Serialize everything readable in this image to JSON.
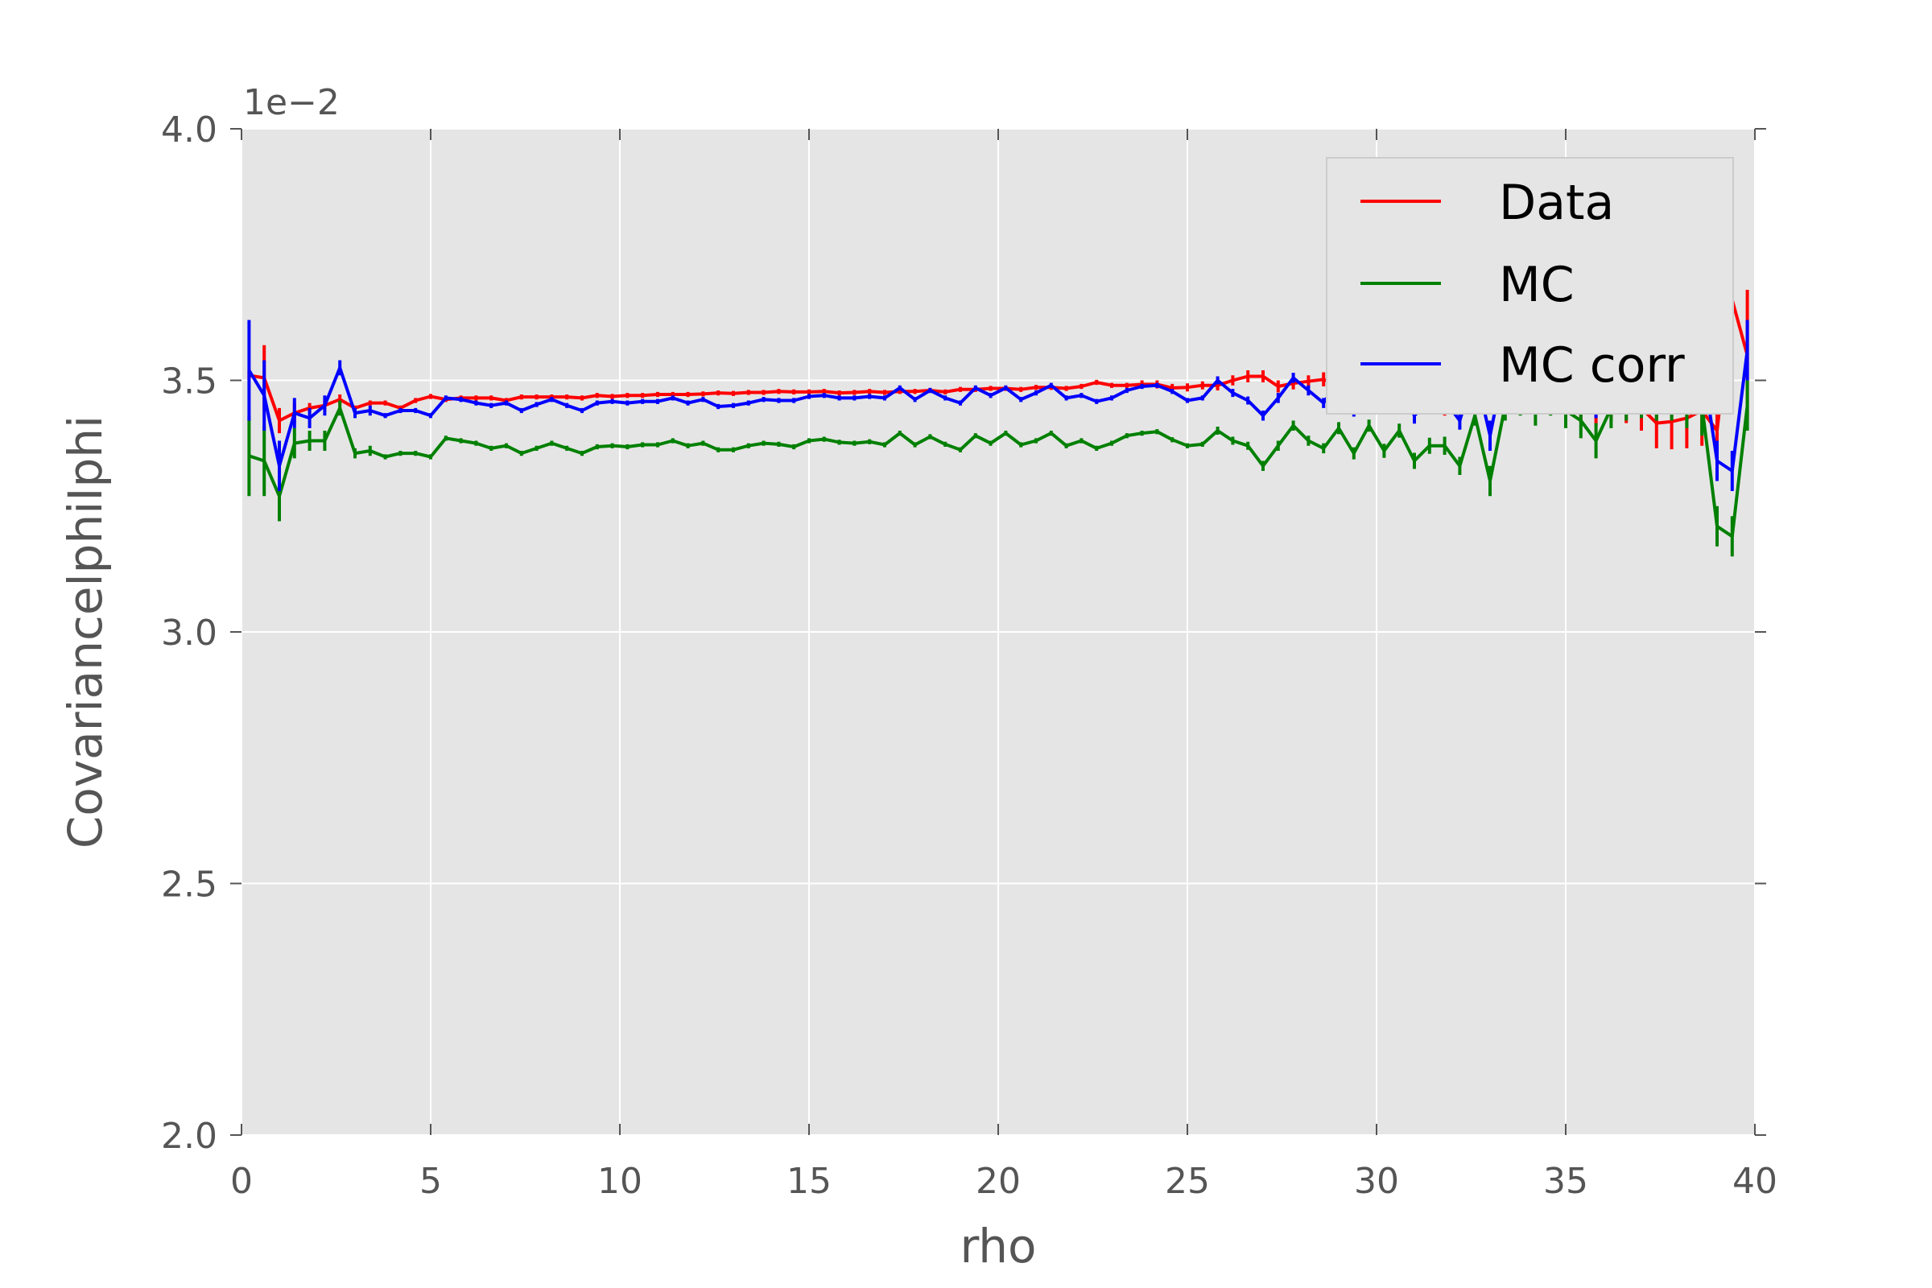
{
  "chart_data": {
    "type": "line",
    "title": "",
    "xlabel": "rho",
    "ylabel": "CovariancelphiIphi",
    "xlim": [
      0,
      40
    ],
    "ylim": [
      2.0,
      4.0
    ],
    "y_scale_label": "1e−2",
    "x_ticks": [
      0,
      5,
      10,
      15,
      20,
      25,
      30,
      35,
      40
    ],
    "x_tick_labels": [
      "0",
      "5",
      "10",
      "15",
      "20",
      "25",
      "30",
      "35",
      "40"
    ],
    "y_ticks": [
      2.0,
      2.5,
      3.0,
      3.5,
      4.0
    ],
    "y_tick_labels": [
      "2.0",
      "2.5",
      "3.0",
      "3.5",
      "4.0"
    ],
    "grid": true,
    "legend_position": "top-right",
    "x": [
      0.2,
      0.6,
      1.0,
      1.4,
      1.8,
      2.2,
      2.6,
      3.0,
      3.4,
      3.8,
      4.2,
      4.6,
      5.0,
      5.4,
      5.8,
      6.2,
      6.6,
      7.0,
      7.4,
      7.8,
      8.2,
      8.6,
      9.0,
      9.4,
      9.8,
      10.2,
      10.6,
      11.0,
      11.4,
      11.8,
      12.2,
      12.6,
      13.0,
      13.4,
      13.8,
      14.2,
      14.6,
      15.0,
      15.4,
      15.8,
      16.2,
      16.6,
      17.0,
      17.4,
      17.8,
      18.2,
      18.6,
      19.0,
      19.4,
      19.8,
      20.2,
      20.6,
      21.0,
      21.4,
      21.8,
      22.2,
      22.6,
      23.0,
      23.4,
      23.8,
      24.2,
      24.6,
      25.0,
      25.4,
      25.8,
      26.2,
      26.6,
      27.0,
      27.4,
      27.8,
      28.2,
      28.6,
      29.0,
      29.4,
      29.8,
      30.2,
      30.6,
      31.0,
      31.4,
      31.8,
      32.2,
      32.6,
      33.0,
      33.4,
      33.8,
      34.2,
      34.6,
      35.0,
      35.4,
      35.8,
      36.2,
      36.6,
      37.0,
      37.4,
      37.8,
      38.2,
      38.6,
      39.0,
      39.4,
      39.8
    ],
    "series": [
      {
        "name": "Data",
        "color": "#ff0000",
        "values": [
          3.51,
          3.505,
          3.42,
          3.435,
          3.445,
          3.45,
          3.462,
          3.445,
          3.455,
          3.455,
          3.445,
          3.46,
          3.468,
          3.462,
          3.465,
          3.465,
          3.465,
          3.46,
          3.467,
          3.467,
          3.467,
          3.467,
          3.465,
          3.47,
          3.468,
          3.47,
          3.47,
          3.472,
          3.472,
          3.472,
          3.473,
          3.475,
          3.474,
          3.476,
          3.476,
          3.478,
          3.477,
          3.477,
          3.478,
          3.475,
          3.476,
          3.478,
          3.476,
          3.478,
          3.478,
          3.48,
          3.477,
          3.482,
          3.482,
          3.484,
          3.484,
          3.482,
          3.486,
          3.486,
          3.484,
          3.488,
          3.496,
          3.49,
          3.49,
          3.492,
          3.492,
          3.485,
          3.486,
          3.49,
          3.49,
          3.5,
          3.508,
          3.508,
          3.488,
          3.494,
          3.498,
          3.502,
          3.49,
          3.492,
          3.47,
          3.478,
          3.466,
          3.47,
          3.47,
          3.45,
          3.466,
          3.465,
          3.462,
          3.462,
          3.456,
          3.462,
          3.465,
          3.44,
          3.45,
          3.44,
          3.455,
          3.455,
          3.445,
          3.415,
          3.418,
          3.425,
          3.44,
          3.4,
          3.66,
          3.55
        ],
        "errors": [
          0.01,
          0.065,
          0.025,
          0.02,
          0.01,
          0.01,
          0.01,
          0.005,
          0.005,
          0.005,
          0.005,
          0.005,
          0.005,
          0.005,
          0.005,
          0.005,
          0.005,
          0.005,
          0.005,
          0.005,
          0.005,
          0.005,
          0.005,
          0.005,
          0.005,
          0.005,
          0.005,
          0.005,
          0.005,
          0.005,
          0.005,
          0.005,
          0.005,
          0.005,
          0.005,
          0.005,
          0.005,
          0.005,
          0.005,
          0.005,
          0.005,
          0.005,
          0.005,
          0.005,
          0.005,
          0.005,
          0.005,
          0.005,
          0.005,
          0.005,
          0.005,
          0.005,
          0.005,
          0.005,
          0.005,
          0.005,
          0.005,
          0.005,
          0.005,
          0.008,
          0.008,
          0.008,
          0.008,
          0.008,
          0.01,
          0.01,
          0.012,
          0.012,
          0.012,
          0.012,
          0.012,
          0.014,
          0.014,
          0.014,
          0.016,
          0.016,
          0.018,
          0.018,
          0.018,
          0.02,
          0.02,
          0.022,
          0.022,
          0.024,
          0.024,
          0.026,
          0.026,
          0.028,
          0.03,
          0.03,
          0.035,
          0.04,
          0.045,
          0.05,
          0.055,
          0.06,
          0.07,
          0.08,
          0.13,
          0.13
        ]
      },
      {
        "name": "MC",
        "color": "#008000",
        "values": [
          3.35,
          3.34,
          3.27,
          3.375,
          3.38,
          3.38,
          3.445,
          3.355,
          3.36,
          3.348,
          3.355,
          3.355,
          3.348,
          3.385,
          3.38,
          3.375,
          3.365,
          3.37,
          3.355,
          3.365,
          3.375,
          3.365,
          3.355,
          3.368,
          3.37,
          3.368,
          3.372,
          3.372,
          3.38,
          3.37,
          3.375,
          3.362,
          3.362,
          3.37,
          3.375,
          3.373,
          3.368,
          3.38,
          3.383,
          3.377,
          3.375,
          3.378,
          3.372,
          3.395,
          3.372,
          3.388,
          3.373,
          3.362,
          3.39,
          3.375,
          3.395,
          3.372,
          3.38,
          3.395,
          3.37,
          3.38,
          3.365,
          3.375,
          3.39,
          3.395,
          3.398,
          3.382,
          3.37,
          3.373,
          3.4,
          3.38,
          3.37,
          3.33,
          3.37,
          3.41,
          3.38,
          3.365,
          3.405,
          3.355,
          3.41,
          3.36,
          3.4,
          3.34,
          3.37,
          3.37,
          3.33,
          3.43,
          3.3,
          3.45,
          3.46,
          3.44,
          3.46,
          3.44,
          3.42,
          3.38,
          3.445,
          3.46,
          3.47,
          3.47,
          3.47,
          3.46,
          3.45,
          3.21,
          3.19,
          3.45
        ],
        "errors": [
          0.08,
          0.07,
          0.05,
          0.03,
          0.02,
          0.02,
          0.015,
          0.01,
          0.01,
          0.005,
          0.005,
          0.005,
          0.005,
          0.005,
          0.005,
          0.005,
          0.005,
          0.005,
          0.005,
          0.005,
          0.005,
          0.005,
          0.005,
          0.005,
          0.005,
          0.005,
          0.005,
          0.005,
          0.005,
          0.005,
          0.005,
          0.005,
          0.005,
          0.005,
          0.005,
          0.005,
          0.005,
          0.005,
          0.005,
          0.005,
          0.005,
          0.005,
          0.005,
          0.005,
          0.005,
          0.005,
          0.005,
          0.005,
          0.005,
          0.005,
          0.005,
          0.005,
          0.005,
          0.005,
          0.005,
          0.005,
          0.005,
          0.005,
          0.005,
          0.005,
          0.005,
          0.005,
          0.005,
          0.005,
          0.008,
          0.008,
          0.008,
          0.01,
          0.01,
          0.01,
          0.01,
          0.01,
          0.012,
          0.012,
          0.012,
          0.014,
          0.014,
          0.016,
          0.016,
          0.018,
          0.018,
          0.02,
          0.03,
          0.03,
          0.03,
          0.03,
          0.03,
          0.035,
          0.035,
          0.035,
          0.04,
          0.04,
          0.045,
          0.05,
          0.05,
          0.055,
          0.06,
          0.04,
          0.04,
          0.05
        ]
      },
      {
        "name": "MC corr",
        "color": "#0000ff",
        "values": [
          3.52,
          3.47,
          3.33,
          3.435,
          3.425,
          3.45,
          3.525,
          3.435,
          3.44,
          3.43,
          3.44,
          3.44,
          3.43,
          3.465,
          3.462,
          3.455,
          3.45,
          3.455,
          3.44,
          3.452,
          3.462,
          3.45,
          3.44,
          3.455,
          3.458,
          3.455,
          3.458,
          3.458,
          3.465,
          3.455,
          3.462,
          3.448,
          3.45,
          3.455,
          3.462,
          3.46,
          3.46,
          3.468,
          3.47,
          3.465,
          3.465,
          3.468,
          3.465,
          3.485,
          3.462,
          3.48,
          3.465,
          3.455,
          3.485,
          3.47,
          3.485,
          3.462,
          3.475,
          3.49,
          3.465,
          3.47,
          3.458,
          3.465,
          3.48,
          3.488,
          3.49,
          3.478,
          3.46,
          3.465,
          3.5,
          3.475,
          3.46,
          3.43,
          3.465,
          3.505,
          3.48,
          3.455,
          3.5,
          3.44,
          3.5,
          3.45,
          3.49,
          3.43,
          3.46,
          3.46,
          3.42,
          3.52,
          3.39,
          3.54,
          3.54,
          3.52,
          3.545,
          3.53,
          3.505,
          3.46,
          3.535,
          3.55,
          3.56,
          3.56,
          3.56,
          3.555,
          3.54,
          3.34,
          3.32,
          3.56
        ],
        "errors": [
          0.1,
          0.07,
          0.05,
          0.03,
          0.02,
          0.02,
          0.015,
          0.01,
          0.01,
          0.005,
          0.005,
          0.005,
          0.005,
          0.005,
          0.005,
          0.005,
          0.005,
          0.005,
          0.005,
          0.005,
          0.005,
          0.005,
          0.005,
          0.005,
          0.005,
          0.005,
          0.005,
          0.005,
          0.005,
          0.005,
          0.005,
          0.005,
          0.005,
          0.005,
          0.005,
          0.005,
          0.005,
          0.005,
          0.005,
          0.005,
          0.005,
          0.005,
          0.005,
          0.005,
          0.005,
          0.005,
          0.005,
          0.005,
          0.005,
          0.005,
          0.005,
          0.005,
          0.005,
          0.005,
          0.005,
          0.005,
          0.005,
          0.005,
          0.005,
          0.005,
          0.005,
          0.005,
          0.005,
          0.005,
          0.008,
          0.008,
          0.008,
          0.01,
          0.01,
          0.01,
          0.01,
          0.01,
          0.012,
          0.012,
          0.012,
          0.014,
          0.014,
          0.016,
          0.016,
          0.018,
          0.018,
          0.02,
          0.03,
          0.03,
          0.03,
          0.03,
          0.03,
          0.035,
          0.035,
          0.035,
          0.04,
          0.04,
          0.045,
          0.05,
          0.05,
          0.055,
          0.06,
          0.04,
          0.04,
          0.06
        ]
      }
    ]
  }
}
